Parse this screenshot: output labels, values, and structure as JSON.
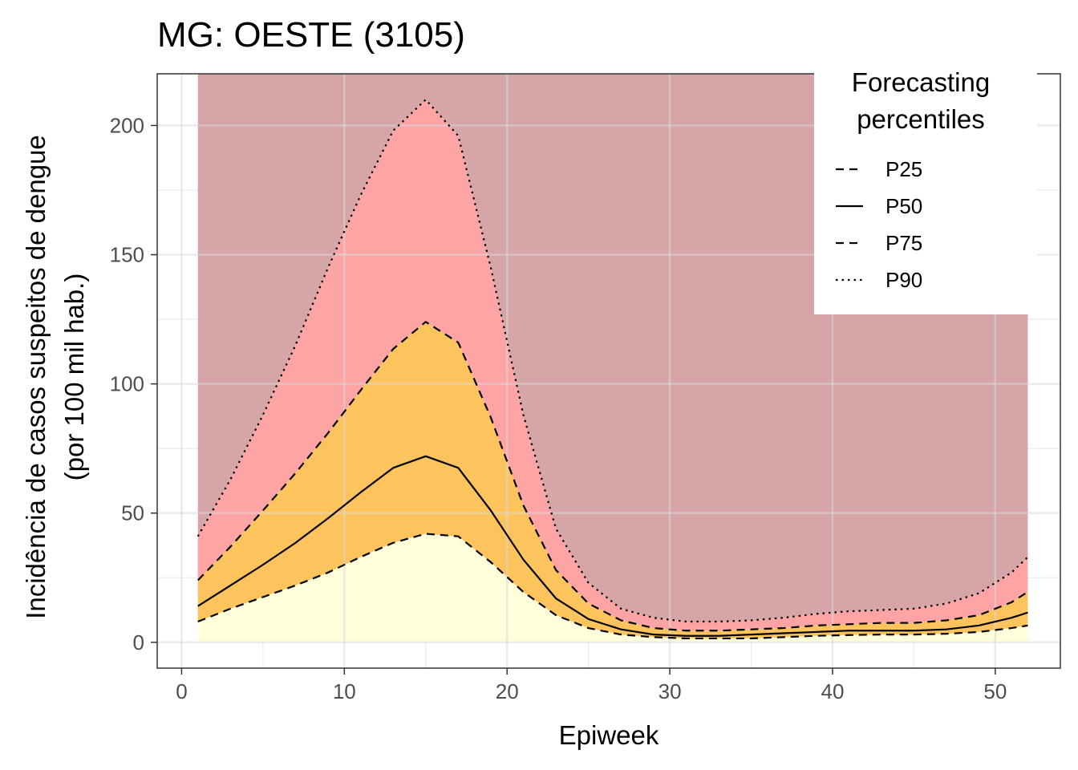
{
  "chart_data": {
    "type": "area",
    "title": "MG: OESTE (3105)",
    "xlabel": "Epiweek",
    "ylabel": [
      "Incidência de casos suspeitos de dengue",
      "(por 100 mil hab.)"
    ],
    "xlim": [
      -1.5,
      54
    ],
    "ylim": [
      -10,
      220
    ],
    "x_ticks": [
      0,
      10,
      20,
      30,
      40,
      50
    ],
    "y_ticks": [
      0,
      50,
      100,
      150,
      200
    ],
    "grid": true,
    "legend": {
      "title": [
        "Forecasting",
        "percentiles"
      ],
      "position": "top-right",
      "entries": [
        {
          "label": "P25",
          "dash": "dashed"
        },
        {
          "label": "P50",
          "dash": "solid"
        },
        {
          "label": "P75",
          "dash": "dashed"
        },
        {
          "label": "P90",
          "dash": "dotted"
        }
      ]
    },
    "fill_colors": {
      "below_p25": "#ffffdc",
      "p25_p75": "#fdc35c",
      "p75_p90": "#fea4a5",
      "above_p90": "#d6a5a7"
    },
    "upper_bound": 220,
    "x": [
      1,
      3,
      5,
      7,
      9,
      11,
      13,
      15,
      17,
      19,
      21,
      23,
      25,
      27,
      29,
      31,
      33,
      35,
      37,
      39,
      41,
      43,
      45,
      47,
      49,
      51,
      52
    ],
    "series": [
      {
        "name": "P25",
        "values": [
          8,
          13,
          17.5,
          22,
          27,
          33,
          38.5,
          42,
          41,
          31,
          19.5,
          10.5,
          5.5,
          3,
          2,
          1.5,
          1.5,
          1.5,
          2,
          2.5,
          2.8,
          3,
          3,
          3.3,
          4,
          5.5,
          6.5
        ]
      },
      {
        "name": "P50",
        "values": [
          14,
          22,
          30,
          38.5,
          48,
          58,
          67.5,
          72,
          67.5,
          51,
          32,
          17,
          9,
          5,
          3,
          2.5,
          2.5,
          3,
          3.5,
          4,
          4.5,
          4.5,
          4.5,
          5,
          6.5,
          9.5,
          11.5
        ]
      },
      {
        "name": "P75",
        "values": [
          24,
          37,
          51,
          65.5,
          81,
          97.5,
          113.5,
          124,
          116,
          87,
          53,
          28,
          15,
          8.5,
          5.5,
          4.5,
          4.5,
          5,
          5.5,
          6.5,
          7,
          7.5,
          7.5,
          8.5,
          10.5,
          15.5,
          19.5
        ]
      },
      {
        "name": "P90",
        "values": [
          41,
          63,
          88,
          115,
          145,
          173,
          198,
          210,
          196,
          145,
          88,
          44,
          23,
          13,
          9.5,
          8,
          8,
          8.5,
          9.5,
          11,
          12,
          12.5,
          13,
          15,
          19,
          27,
          33
        ]
      }
    ]
  }
}
